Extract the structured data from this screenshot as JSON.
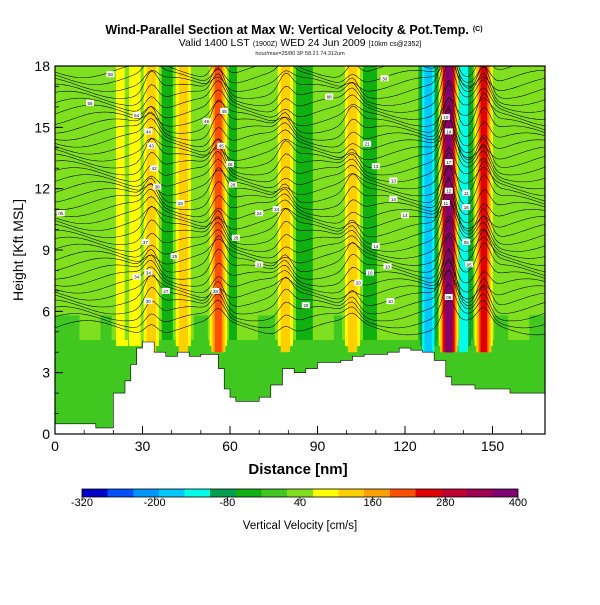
{
  "chart_data": {
    "type": "heatmap",
    "title": "Wind-Parallel Section at Max W: Vertical Velocity & Pot.Temp.",
    "title_mark": "(C)",
    "subtitle_prefix": "Valid 1400 LST",
    "subtitle_zulu": "(1900Z)",
    "subtitle_date": "WED 24 Jun 2009",
    "subtitle_suffix": "[10km cs@2352]",
    "subtitle2": "hour/max=25/80 3P 58.21 74.312um",
    "xlabel": "Distance [nm]",
    "ylabel": "Height [Kft MSL]",
    "xlim": [
      0,
      168
    ],
    "ylim": [
      0,
      18
    ],
    "xticks": [
      "0",
      "30",
      "60",
      "90",
      "120",
      "150"
    ],
    "yticks": [
      "0",
      "3",
      "6",
      "9",
      "12",
      "15",
      "18"
    ],
    "colorbar": {
      "label": "Vertical Velocity [cm/s]",
      "tick_labels": [
        "-320",
        "-200",
        "-80",
        "40",
        "160",
        "280",
        "400"
      ],
      "range": [
        -320,
        400
      ],
      "colors": [
        "#0000c8",
        "#0050ff",
        "#0096ff",
        "#00c8ff",
        "#00ffe6",
        "#00a050",
        "#10b010",
        "#40c820",
        "#80e020",
        "#ffff00",
        "#ffd000",
        "#ffa000",
        "#ff5000",
        "#e00000",
        "#c00030",
        "#a00050",
        "#800070"
      ]
    },
    "terrain": {
      "x": [
        0,
        2,
        6,
        10,
        14,
        18,
        20,
        24,
        26,
        28,
        30,
        34,
        38,
        42,
        46,
        50,
        54,
        56,
        58,
        60,
        62,
        66,
        70,
        74,
        78,
        82,
        86,
        90,
        94,
        98,
        102,
        106,
        110,
        114,
        118,
        122,
        126,
        130,
        134,
        136,
        140,
        144,
        150,
        156,
        162,
        168
      ],
      "height": [
        0.5,
        0.5,
        0.5,
        0.5,
        0.3,
        0.3,
        2.0,
        2.6,
        3.4,
        4.2,
        4.5,
        4.0,
        3.8,
        4.0,
        3.8,
        3.9,
        3.9,
        3.2,
        2.2,
        1.8,
        1.6,
        1.6,
        1.8,
        2.4,
        3.2,
        3.0,
        3.2,
        3.5,
        3.5,
        3.6,
        3.8,
        3.9,
        3.9,
        4.0,
        4.2,
        4.1,
        4.0,
        3.6,
        2.8,
        2.4,
        2.4,
        2.2,
        2.2,
        2.0,
        2.0,
        2.0
      ]
    },
    "updraft_bands": [
      {
        "x": 12,
        "value": 60
      },
      {
        "x": 23,
        "value": 110
      },
      {
        "x": 27.5,
        "value": 90
      },
      {
        "x": 33,
        "value": 150
      },
      {
        "x": 44,
        "value": 140
      },
      {
        "x": 56,
        "value": 220
      },
      {
        "x": 66,
        "value": 60
      },
      {
        "x": 79,
        "value": 140
      },
      {
        "x": 92,
        "value": 50
      },
      {
        "x": 102,
        "value": 140
      },
      {
        "x": 114,
        "value": 60
      },
      {
        "x": 121,
        "value": 60
      },
      {
        "x": 135,
        "value": 360
      },
      {
        "x": 147,
        "value": 240
      },
      {
        "x": 159,
        "value": 50
      }
    ],
    "downdraft_bands": [
      {
        "x": 38,
        "value": -60
      },
      {
        "x": 62,
        "value": -70
      },
      {
        "x": 86,
        "value": -60
      },
      {
        "x": 108,
        "value": -70
      },
      {
        "x": 128,
        "value": -180
      },
      {
        "x": 140,
        "value": -120
      }
    ],
    "theta_contours": {
      "base": 300,
      "step": 1,
      "labels": [
        {
          "x": 19,
          "y": 17.6,
          "text": "58"
        },
        {
          "x": 12,
          "y": 16.2,
          "text": "55"
        },
        {
          "x": 28,
          "y": 15.6,
          "text": "54"
        },
        {
          "x": 32,
          "y": 14.8,
          "text": "44"
        },
        {
          "x": 33,
          "y": 14.1,
          "text": "43"
        },
        {
          "x": 34,
          "y": 13.0,
          "text": "42"
        },
        {
          "x": 35,
          "y": 12.1,
          "text": "38"
        },
        {
          "x": 31,
          "y": 9.4,
          "text": "37"
        },
        {
          "x": 28,
          "y": 7.7,
          "text": "34"
        },
        {
          "x": 32,
          "y": 7.9,
          "text": "34"
        },
        {
          "x": 32,
          "y": 6.5,
          "text": "30"
        },
        {
          "x": 38,
          "y": 7.0,
          "text": "27"
        },
        {
          "x": 41,
          "y": 8.7,
          "text": "25"
        },
        {
          "x": 43,
          "y": 11.3,
          "text": "28"
        },
        {
          "x": 52,
          "y": 15.3,
          "text": "46"
        },
        {
          "x": 58,
          "y": 15.8,
          "text": "45"
        },
        {
          "x": 57,
          "y": 14.1,
          "text": "45"
        },
        {
          "x": 60,
          "y": 13.2,
          "text": "28"
        },
        {
          "x": 61,
          "y": 12.2,
          "text": "28"
        },
        {
          "x": 62,
          "y": 9.6,
          "text": "28"
        },
        {
          "x": 55,
          "y": 7.0,
          "text": "28"
        },
        {
          "x": 70,
          "y": 10.8,
          "text": "24"
        },
        {
          "x": 70,
          "y": 8.3,
          "text": "21"
        },
        {
          "x": 76,
          "y": 11.0,
          "text": "24"
        },
        {
          "x": 86,
          "y": 6.3,
          "text": "20"
        },
        {
          "x": 94,
          "y": 16.5,
          "text": "88"
        },
        {
          "x": 104,
          "y": 7.4,
          "text": "20"
        },
        {
          "x": 107,
          "y": 14.2,
          "text": "21"
        },
        {
          "x": 110,
          "y": 13.1,
          "text": "13"
        },
        {
          "x": 113,
          "y": 17.4,
          "text": "30"
        },
        {
          "x": 116,
          "y": 12.4,
          "text": "13"
        },
        {
          "x": 116,
          "y": 11.5,
          "text": "14"
        },
        {
          "x": 120,
          "y": 10.7,
          "text": "14"
        },
        {
          "x": 110,
          "y": 9.2,
          "text": "14"
        },
        {
          "x": 108,
          "y": 7.9,
          "text": "10"
        },
        {
          "x": 114,
          "y": 8.2,
          "text": "10"
        },
        {
          "x": 115,
          "y": 6.5,
          "text": "10"
        },
        {
          "x": 2,
          "y": 10.8,
          "text": "05"
        },
        {
          "x": 134,
          "y": 15.5,
          "text": "10"
        },
        {
          "x": 135,
          "y": 14.8,
          "text": "14"
        },
        {
          "x": 135,
          "y": 13.3,
          "text": "17"
        },
        {
          "x": 135,
          "y": 11.9,
          "text": "12"
        },
        {
          "x": 134,
          "y": 11.3,
          "text": "11"
        },
        {
          "x": 141,
          "y": 11.8,
          "text": "11"
        },
        {
          "x": 141,
          "y": 11.1,
          "text": "16"
        },
        {
          "x": 141,
          "y": 9.4,
          "text": "05"
        },
        {
          "x": 142,
          "y": 8.3,
          "text": "05"
        },
        {
          "x": 135,
          "y": 6.7,
          "text": "05"
        }
      ]
    }
  }
}
